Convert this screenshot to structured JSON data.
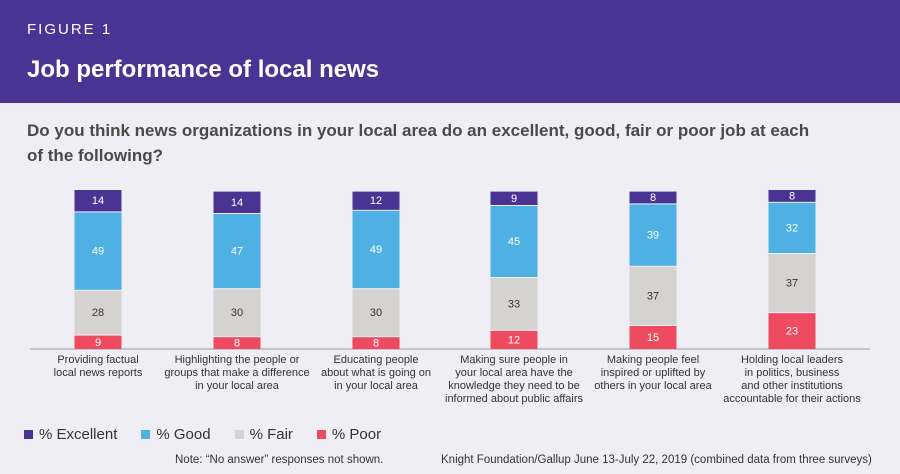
{
  "figure_label": "FIGURE 1",
  "title": "Job performance of local news",
  "question": "Do you think news organizations in your local area do an excellent, good, fair or poor job at each of the following?",
  "note": "Note: “No answer” responses not shown.",
  "source": "Knight Foundation/Gallup June 13-July 22, 2019 (combined data from three surveys)",
  "colors": {
    "header_bg": "#4a3392",
    "excellent": "#4a3392",
    "good": "#4fb1e3",
    "fair": "#d5d3d1",
    "poor": "#ee4b61"
  },
  "chart_data": {
    "type": "bar",
    "stacked": true,
    "categories": [
      [
        "Providing factual",
        "local news reports"
      ],
      [
        "Highlighting the people or",
        "groups that make a difference",
        "in your local area"
      ],
      [
        "Educating people",
        "about what is going on",
        "in your local area"
      ],
      [
        "Making sure people in",
        "your local area have the",
        "knowledge they need to be",
        "informed about public affairs"
      ],
      [
        "Making people feel",
        "inspired or uplifted by",
        "others in your local area"
      ],
      [
        "Holding local leaders",
        "in politics, business",
        "and other institutions",
        "accountable for their actions"
      ]
    ],
    "series": [
      {
        "name": "% Excellent",
        "values": [
          14,
          14,
          12,
          9,
          8,
          8
        ]
      },
      {
        "name": "% Good",
        "values": [
          49,
          47,
          49,
          45,
          39,
          32
        ]
      },
      {
        "name": "% Fair",
        "values": [
          28,
          30,
          30,
          33,
          37,
          37
        ]
      },
      {
        "name": "% Poor",
        "values": [
          9,
          8,
          8,
          12,
          15,
          23
        ]
      }
    ],
    "legend_position": "bottom-left",
    "grid": false
  }
}
